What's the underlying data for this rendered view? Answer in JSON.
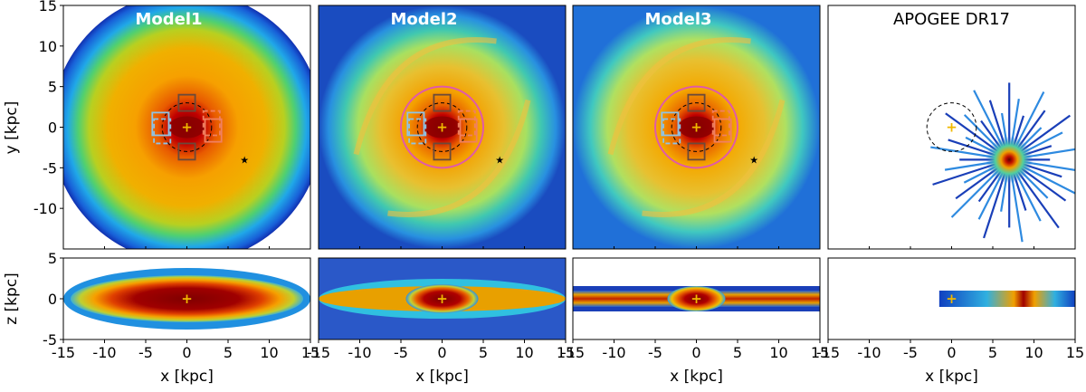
{
  "chart_data": {
    "type": "heatmap",
    "shared": {
      "xlabel": "x [kpc]",
      "ylabel_top": "y [kpc]",
      "ylabel_bottom": "z [kpc]",
      "xlim": [
        -15,
        15
      ],
      "ylim_top": [
        -15,
        15
      ],
      "ylim_bottom": [
        -5,
        5
      ],
      "xticks": [
        -15,
        -10,
        -5,
        0,
        5,
        10,
        15
      ],
      "xtick_labels": [
        "-15",
        "-10",
        "-5",
        "0",
        "5",
        "10",
        "15"
      ],
      "yticks_top": [
        15,
        10,
        5,
        0,
        -5,
        -10
      ],
      "ytick_labels_top": [
        "15",
        "10",
        "5",
        "0",
        "-5",
        "-10"
      ],
      "yticks_bottom": [
        5,
        0,
        -5
      ],
      "ytick_labels_bottom": [
        "5",
        "0",
        "-5"
      ],
      "galactic_center": [
        0,
        0
      ],
      "sun_position": [
        7,
        -4
      ],
      "colormap": "jet"
    },
    "panels": [
      {
        "title": "Model1",
        "title_color": "#ffffff",
        "kind": "model",
        "pink_circle_radius": 0,
        "dashed_circle_radius": 3,
        "disk_halfheight": 2.2
      },
      {
        "title": "Model2",
        "title_color": "#ffffff",
        "kind": "model",
        "pink_circle_radius": 5,
        "dashed_circle_radius": 3,
        "disk_halfheight": 1.1
      },
      {
        "title": "Model3",
        "title_color": "#ffffff",
        "kind": "model",
        "pink_circle_radius": 5,
        "dashed_circle_radius": 3,
        "disk_halfheight": 0.9
      },
      {
        "title": "APOGEE DR17",
        "title_color": "#000000",
        "kind": "observed",
        "pink_circle_radius": 0,
        "dashed_circle_radius": 3,
        "disk_halfheight": 0.8
      }
    ],
    "regions": [
      {
        "name": "left-solid",
        "x": [
          -4.2,
          -2.2
        ],
        "y": [
          -1,
          1.8
        ],
        "color": "#8ec3e6",
        "style": "solid"
      },
      {
        "name": "left-dashed",
        "x": [
          -4,
          -2
        ],
        "y": [
          -2,
          1
        ],
        "color": "#8ec3e6",
        "style": "dashed"
      },
      {
        "name": "right-solid",
        "x": [
          2.2,
          4.2
        ],
        "y": [
          -1.8,
          1
        ],
        "color": "#f08060",
        "style": "solid"
      },
      {
        "name": "right-dashed",
        "x": [
          2,
          4
        ],
        "y": [
          -1,
          2
        ],
        "color": "#f08060",
        "style": "dashed"
      },
      {
        "name": "top-solid",
        "x": [
          -1,
          1
        ],
        "y": [
          2,
          4
        ],
        "color": "#6a4a3a",
        "style": "solid"
      },
      {
        "name": "bottom-solid",
        "x": [
          -1,
          1
        ],
        "y": [
          -4,
          -2
        ],
        "color": "#6a4a3a",
        "style": "solid"
      }
    ]
  }
}
